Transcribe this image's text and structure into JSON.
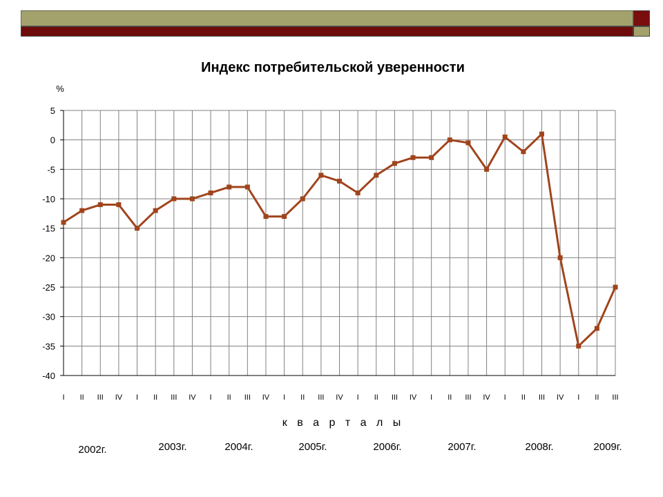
{
  "chart_data": {
    "type": "line",
    "title": "Индекс потребительской уверенности",
    "ylabel": "%",
    "xlabel": "к в а р т а л ы",
    "ylim": [
      -40,
      5
    ],
    "yticks": [
      5,
      0,
      -5,
      -10,
      -15,
      -20,
      -25,
      -30,
      -35,
      -40
    ],
    "grid": true,
    "categories": [
      "I",
      "II",
      "III",
      "IV",
      "I",
      "II",
      "III",
      "IV",
      "I",
      "II",
      "III",
      "IV",
      "I",
      "II",
      "III",
      "IV",
      "I",
      "II",
      "III",
      "IV",
      "I",
      "II",
      "III",
      "IV",
      "I",
      "II",
      "III",
      "IV",
      "I",
      "II",
      "III"
    ],
    "years": [
      "2002г.",
      "2003г.",
      "2004г.",
      "2005г.",
      "2006г.",
      "2007г.",
      "2008г.",
      "2009г."
    ],
    "series": [
      {
        "color": "#a0441c",
        "values": [
          -14,
          -12,
          -11,
          -11,
          -15,
          -12,
          -10,
          -10,
          -9,
          -8,
          -8,
          -13,
          -13,
          -10,
          -6,
          -7,
          -9,
          -6,
          -4,
          -3,
          -3,
          0,
          -0.5,
          -5,
          0.5,
          -2,
          1,
          -20,
          -35,
          -32,
          -25
        ]
      }
    ]
  }
}
